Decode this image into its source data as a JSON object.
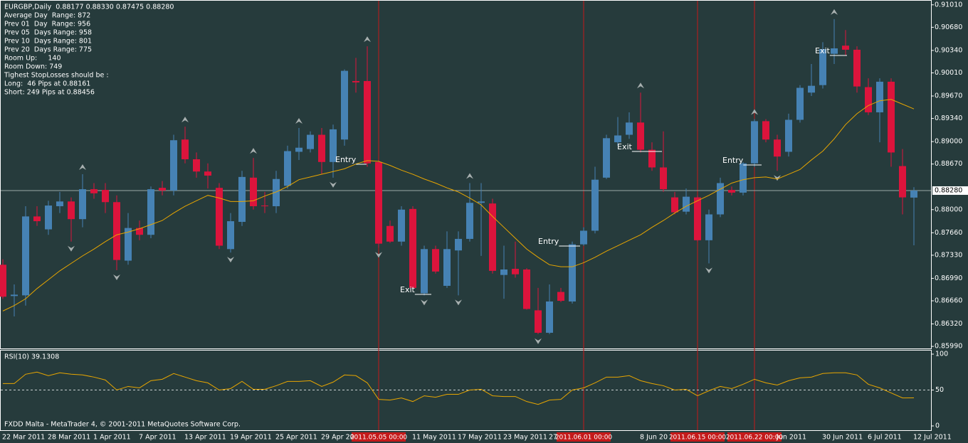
{
  "chart_data": [
    {
      "type": "candlestick",
      "title": "EURGBP,Daily  0.88177 0.88330 0.87475 0.88280",
      "info_text": [
        "Average Day  Range: 872",
        "Prev 01  Day  Range: 956",
        "Prev 05  Days Range: 958",
        "Prev 10  Days Range: 801",
        "Prev 20  Days Range: 775",
        "Room Up:     140",
        "Room Down: 749",
        "Tighest StopLosses should be :",
        "Long:  46 Pips at 0.88161",
        "Short: 249 Pips at 0.88456"
      ],
      "categories": [
        "22 Mar 2011",
        null,
        null,
        null,
        "28 Mar 2011",
        null,
        null,
        null,
        "1 Apr 2011",
        null,
        null,
        null,
        "7 Apr 2011",
        null,
        null,
        null,
        "13 Apr 2011",
        null,
        null,
        null,
        "19 Apr 2011",
        null,
        null,
        null,
        "25 Apr 2011",
        null,
        null,
        null,
        "29 Apr 20",
        null,
        null,
        null,
        null,
        null,
        null,
        null,
        "11 May 2011",
        null,
        null,
        null,
        "17 May 2011",
        null,
        null,
        null,
        "23 May 2011",
        null,
        null,
        null,
        "27",
        null,
        null,
        null,
        null,
        null,
        null,
        null,
        "8 Jun 20",
        null,
        null,
        null,
        null,
        null,
        null,
        null,
        null,
        null,
        null,
        null,
        "Jun 2011",
        null,
        null,
        null,
        "30 Jun 2011",
        null,
        null,
        null,
        "6 Jul 2011",
        null,
        null,
        null,
        "12 Jul 2011"
      ],
      "open": [
        0.8719,
        0.8673,
        0.8674,
        0.879,
        0.8771,
        0.8805,
        0.8812,
        0.8786,
        0.883,
        0.8829,
        0.8811,
        0.8725,
        0.8773,
        0.8763,
        0.8832,
        0.8828,
        0.8903,
        0.8874,
        0.8856,
        0.8832,
        0.8742,
        0.8782,
        0.8847,
        0.8806,
        0.8805,
        0.8835,
        0.8885,
        0.8889,
        0.891,
        0.887,
        0.8903,
        0.8989,
        0.8989,
        0.887,
        0.8776,
        0.8753,
        0.8801,
        0.8677,
        0.8742,
        0.8688,
        0.874,
        0.8757,
        0.881,
        0.8809,
        0.8704,
        0.8713,
        0.8712,
        0.8652,
        0.8619,
        0.8679,
        0.8665,
        0.8749,
        0.8769,
        0.8847,
        0.8899,
        0.891,
        0.8928,
        0.8888,
        0.8862,
        0.8818,
        0.8797,
        0.8818,
        0.8755,
        0.8793,
        0.8829,
        0.8825,
        0.8868,
        0.893,
        0.8903,
        0.8885,
        0.8932,
        0.8972,
        0.8983,
        0.9029,
        0.9041,
        0.9035,
        0.898,
        0.8943,
        0.8988,
        0.8864,
        0.88177
      ],
      "high": [
        0.8727,
        0.869,
        0.8805,
        0.8805,
        0.8813,
        0.8826,
        0.8818,
        0.8852,
        0.8839,
        0.8839,
        0.8821,
        0.8795,
        0.8784,
        0.8834,
        0.8842,
        0.891,
        0.8922,
        0.8884,
        0.8868,
        0.8839,
        0.8795,
        0.8857,
        0.8876,
        0.8826,
        0.8857,
        0.8894,
        0.892,
        0.8915,
        0.892,
        0.8925,
        0.9006,
        0.9023,
        0.904,
        0.8873,
        0.8784,
        0.8805,
        0.8805,
        0.8747,
        0.8747,
        0.8768,
        0.8768,
        0.8839,
        0.8839,
        0.8816,
        0.8747,
        0.8753,
        0.8714,
        0.8685,
        0.869,
        0.8685,
        0.8753,
        0.8774,
        0.8863,
        0.891,
        0.8936,
        0.8943,
        0.8972,
        0.8899,
        0.8915,
        0.8826,
        0.8831,
        0.8821,
        0.88,
        0.8847,
        0.8834,
        0.887,
        0.8933,
        0.8933,
        0.891,
        0.8941,
        0.8983,
        0.9014,
        0.9046,
        0.908,
        0.9064,
        0.904,
        0.8993,
        0.8993,
        0.8993,
        0.8889,
        0.8833
      ],
      "low": [
        0.8669,
        0.8643,
        0.8659,
        0.8776,
        0.8763,
        0.8795,
        0.8753,
        0.8774,
        0.8816,
        0.8795,
        0.8711,
        0.8719,
        0.8755,
        0.8758,
        0.8821,
        0.8821,
        0.8868,
        0.8847,
        0.8831,
        0.8742,
        0.8737,
        0.8776,
        0.88,
        0.8795,
        0.8795,
        0.8831,
        0.8873,
        0.8884,
        0.8852,
        0.8847,
        0.8894,
        0.8972,
        0.8863,
        0.8744,
        0.8751,
        0.8747,
        0.868,
        0.8674,
        0.8706,
        0.8685,
        0.8674,
        0.8753,
        0.8732,
        0.8706,
        0.8669,
        0.87,
        0.8653,
        0.8617,
        0.8617,
        0.8664,
        0.8662,
        0.8747,
        0.8765,
        0.8845,
        0.8894,
        0.8904,
        0.8884,
        0.8857,
        0.8826,
        0.8793,
        0.8793,
        0.8753,
        0.8721,
        0.8789,
        0.8821,
        0.8821,
        0.8863,
        0.8899,
        0.8857,
        0.8878,
        0.8928,
        0.8967,
        0.8978,
        0.9014,
        0.9027,
        0.8972,
        0.8939,
        0.8899,
        0.8863,
        0.8793,
        0.87475
      ],
      "close": [
        0.8672,
        0.8675,
        0.879,
        0.8783,
        0.8806,
        0.8812,
        0.8786,
        0.883,
        0.8824,
        0.8811,
        0.8726,
        0.8773,
        0.8763,
        0.883,
        0.8828,
        0.8902,
        0.8874,
        0.8856,
        0.885,
        0.8747,
        0.8783,
        0.8848,
        0.8805,
        0.8805,
        0.8845,
        0.8886,
        0.8891,
        0.891,
        0.887,
        0.8918,
        0.9004,
        0.8987,
        0.8868,
        0.875,
        0.8753,
        0.88,
        0.8685,
        0.8742,
        0.8709,
        0.8742,
        0.8757,
        0.881,
        0.8812,
        0.871,
        0.8712,
        0.8705,
        0.8654,
        0.8619,
        0.8665,
        0.8666,
        0.8749,
        0.8769,
        0.8844,
        0.8905,
        0.8909,
        0.8928,
        0.8888,
        0.8862,
        0.883,
        0.8796,
        0.8819,
        0.8755,
        0.8793,
        0.8839,
        0.8825,
        0.8868,
        0.893,
        0.8903,
        0.8878,
        0.8932,
        0.8979,
        0.8982,
        0.9036,
        0.9037,
        0.9035,
        0.8981,
        0.8943,
        0.8988,
        0.8884,
        0.8818,
        0.8828
      ],
      "up_color": "#4682b4",
      "down_color": "#dc143c",
      "ma_values": [
        0.8651,
        0.8659,
        0.8669,
        0.8684,
        0.8697,
        0.871,
        0.8721,
        0.8732,
        0.8742,
        0.8753,
        0.8763,
        0.8767,
        0.8772,
        0.8778,
        0.8784,
        0.8795,
        0.8805,
        0.8813,
        0.8821,
        0.8817,
        0.8812,
        0.8812,
        0.8813,
        0.882,
        0.8826,
        0.8834,
        0.8844,
        0.8848,
        0.8852,
        0.8856,
        0.886,
        0.8867,
        0.8872,
        0.8871,
        0.8865,
        0.8858,
        0.8852,
        0.8845,
        0.8839,
        0.8832,
        0.8826,
        0.8817,
        0.8807,
        0.879,
        0.8774,
        0.8758,
        0.8742,
        0.873,
        0.8719,
        0.8716,
        0.8716,
        0.8722,
        0.873,
        0.8739,
        0.8747,
        0.8755,
        0.8763,
        0.8774,
        0.8784,
        0.8795,
        0.8805,
        0.8813,
        0.8821,
        0.883,
        0.8839,
        0.8844,
        0.8847,
        0.8848,
        0.8845,
        0.8852,
        0.8859,
        0.8873,
        0.8886,
        0.8904,
        0.8925,
        0.8941,
        0.8953,
        0.896,
        0.8962,
        0.8955,
        0.8948
      ],
      "ma_color": "#e8a600",
      "fractal_color": "#a8b0b0",
      "ylim": [
        0.8596,
        0.9106
      ],
      "yticks": [
        {
          "value": 0.9101,
          "label": "0.91010"
        },
        {
          "value": 0.9068,
          "label": "0.90680"
        },
        {
          "value": 0.9034,
          "label": "0.90340"
        },
        {
          "value": 0.9001,
          "label": "0.90010"
        },
        {
          "value": 0.8967,
          "label": "0.89670"
        },
        {
          "value": 0.8934,
          "label": "0.89340"
        },
        {
          "value": 0.89,
          "label": "0.89000"
        },
        {
          "value": 0.8867,
          "label": "0.88670"
        },
        {
          "value": 0.88,
          "label": "0.88000"
        },
        {
          "value": 0.8766,
          "label": "0.87660"
        },
        {
          "value": 0.8733,
          "label": "0.87330"
        },
        {
          "value": 0.8699,
          "label": "0.86990"
        },
        {
          "value": 0.8666,
          "label": "0.86660"
        },
        {
          "value": 0.8632,
          "label": "0.86320"
        },
        {
          "value": 0.8599,
          "label": "0.85990"
        }
      ],
      "current_price": {
        "value": 0.8828,
        "label": "0.88280"
      },
      "annotations": [
        "Entry",
        "Exit",
        "Entry",
        "Exit",
        "Entry",
        "Exit"
      ],
      "vline_labels": [
        "2011.05.05 00:00",
        "2011.06.01 00:00",
        "2011.06.15 00:00",
        "2011.06.22 00:00"
      ],
      "vline_color": "#c41a1a"
    },
    {
      "type": "line",
      "title": "RSI(10) 39.1308",
      "values": [
        59,
        59,
        72,
        75,
        70,
        74,
        72,
        71,
        68,
        64,
        50,
        55,
        53,
        63,
        65,
        73,
        68,
        63,
        60,
        50,
        52,
        62,
        51,
        51,
        56,
        62,
        62,
        63,
        55,
        61,
        71,
        70,
        60,
        37,
        36,
        39,
        34,
        42,
        40,
        44,
        44,
        50,
        51,
        42,
        41,
        41,
        34,
        30,
        36,
        37,
        50,
        53,
        60,
        68,
        68,
        70,
        63,
        59,
        56,
        50,
        51,
        42,
        49,
        55,
        52,
        58,
        65,
        60,
        57,
        63,
        67,
        68,
        73,
        74,
        74,
        71,
        58,
        53,
        46,
        39,
        39.1308
      ],
      "color": "#e8a600",
      "ylim": [
        0,
        100
      ],
      "yticks": [
        0,
        50,
        100
      ],
      "footer": "FXDD Malta - MetaTrader 4, © 2001-2011 MetaQuotes Software Corp."
    }
  ]
}
